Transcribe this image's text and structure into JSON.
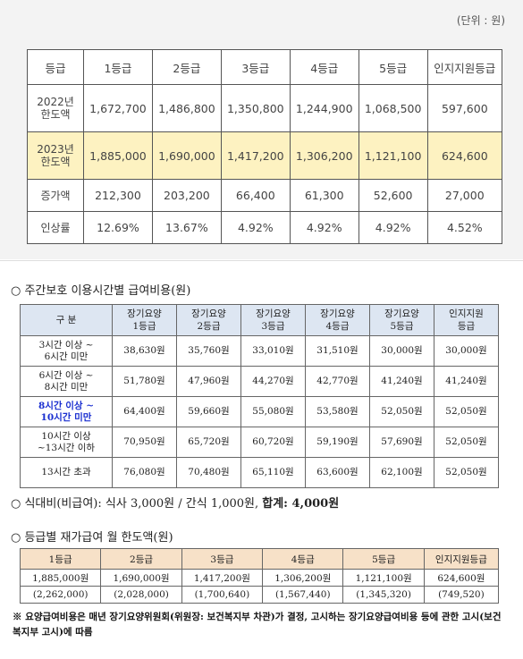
{
  "unit_note": "(단위 : 원)",
  "table1": {
    "headers": [
      "등급",
      "1등급",
      "2등급",
      "3등급",
      "4등급",
      "5등급",
      "인지지원등급"
    ],
    "row2022": {
      "label_line1": "2022년",
      "label_line2": "한도액",
      "values": [
        "1,672,700",
        "1,486,800",
        "1,350,800",
        "1,244,900",
        "1,068,500",
        "597,600"
      ]
    },
    "row2023": {
      "label_line1": "2023년",
      "label_line2": "한도액",
      "values": [
        "1,885,000",
        "1,690,000",
        "1,417,200",
        "1,306,200",
        "1,121,100",
        "624,600"
      ]
    },
    "row_increase": {
      "label": "증가액",
      "values": [
        "212,300",
        "203,200",
        "66,400",
        "61,300",
        "52,600",
        "27,000"
      ]
    },
    "row_rate": {
      "label": "인상률",
      "values": [
        "12.69%",
        "13.67%",
        "4.92%",
        "4.92%",
        "4.92%",
        "4.52%"
      ]
    }
  },
  "section2": {
    "title": "○ 주간보호 이용시간별 급여비용(원)",
    "header_label": "구 분",
    "headers": [
      {
        "l1": "장기요양",
        "l2": "1등급"
      },
      {
        "l1": "장기요양",
        "l2": "2등급"
      },
      {
        "l1": "장기요양",
        "l2": "3등급"
      },
      {
        "l1": "장기요양",
        "l2": "4등급"
      },
      {
        "l1": "장기요양",
        "l2": "5등급"
      },
      {
        "l1": "인지지원",
        "l2": "등급"
      }
    ],
    "rows": [
      {
        "l1": "3시간 이상 ~",
        "l2": "6시간 미만",
        "values": [
          "38,630원",
          "35,760원",
          "33,010원",
          "31,510원",
          "30,000원",
          "30,000원"
        ]
      },
      {
        "l1": "6시간 이상 ~",
        "l2": "8시간 미만",
        "values": [
          "51,780원",
          "47,960원",
          "44,270원",
          "42,770원",
          "41,240원",
          "41,240원"
        ]
      },
      {
        "l1": "8시간 이상 ~",
        "l2": "10시간 미만",
        "values": [
          "64,400원",
          "59,660원",
          "55,080원",
          "53,580원",
          "52,050원",
          "52,050원"
        ]
      },
      {
        "l1": "10시간 이상",
        "l2": "~13시간 이하",
        "values": [
          "70,950원",
          "65,720원",
          "60,720원",
          "59,190원",
          "57,690원",
          "52,050원"
        ]
      },
      {
        "l1": "13시간 초과",
        "l2": "",
        "values": [
          "76,080원",
          "70,480원",
          "65,110원",
          "63,600원",
          "62,100원",
          "52,050원"
        ]
      }
    ]
  },
  "meal": {
    "text": "○ 식대비(비급여): 식사 3,000원 / 간식 1,000원, ",
    "total": "합계: 4,000원"
  },
  "section3": {
    "title": "○ 등급별 재가급여 월 한도액(원)",
    "headers": [
      "1등급",
      "2등급",
      "3등급",
      "4등급",
      "5등급",
      "인지지원등급"
    ],
    "values": [
      "1,885,000원",
      "1,690,000원",
      "1,417,200원",
      "1,306,200원",
      "1,121,100원",
      "624,600원"
    ],
    "prev": [
      "(2,262,000)",
      "(2,028,000)",
      "(1,700,640)",
      "(1,567,440)",
      "(1,345,320)",
      "(749,520)"
    ]
  },
  "footnote": "※ 요양급여비용은 매년 장기요양위원회(위원장: 보건복지부 차관)가 결정, 고시하는 장기요양급여비용 등에 관한 고시(보건복지부 고시)에 따름"
}
